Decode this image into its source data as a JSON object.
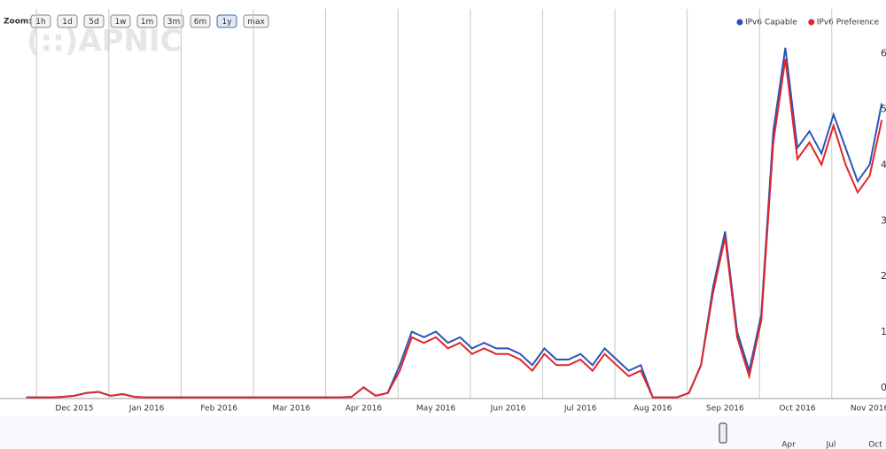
{
  "chart_data": {
    "type": "line",
    "zoom_label": "Zoom:",
    "zoom_buttons": [
      "1h",
      "1d",
      "5d",
      "1w",
      "1m",
      "3m",
      "6m",
      "1y",
      "max"
    ],
    "zoom_selected": "1y",
    "watermark": "(::)APNIC",
    "legend_position": "top-right",
    "categories": [
      null,
      null,
      null,
      null,
      "Dec 2015",
      null,
      null,
      null,
      null,
      null,
      "Jan 2016",
      null,
      null,
      null,
      null,
      null,
      "Feb 2016",
      null,
      null,
      null,
      null,
      null,
      "Mar 2016",
      null,
      null,
      null,
      null,
      null,
      "Apr 2016",
      null,
      null,
      null,
      null,
      null,
      "May 2016",
      null,
      null,
      null,
      null,
      null,
      "Jun 2016",
      null,
      null,
      null,
      null,
      null,
      "Jul 2016",
      null,
      null,
      null,
      null,
      null,
      "Aug 2016",
      null,
      null,
      null,
      null,
      null,
      "Sep 2016",
      null,
      null,
      null,
      null,
      null,
      "Oct 2016",
      null,
      null,
      null,
      null,
      null,
      "Nov 2016",
      null
    ],
    "series": [
      {
        "name": "IPv6 Capable",
        "color": "#2b55b5",
        "values": [
          0.02,
          0.02,
          0.02,
          0.03,
          0.05,
          0.1,
          0.12,
          0.05,
          0.08,
          0.03,
          0.02,
          0.02,
          0.02,
          0.02,
          0.02,
          0.02,
          0.02,
          0.02,
          0.02,
          0.02,
          0.02,
          0.02,
          0.02,
          0.02,
          0.02,
          0.02,
          0.02,
          0.03,
          0.2,
          0.05,
          0.1,
          0.6,
          1.2,
          1.1,
          1.2,
          1.0,
          1.1,
          0.9,
          1.0,
          0.9,
          0.9,
          0.8,
          0.6,
          0.9,
          0.7,
          0.7,
          0.8,
          0.6,
          0.9,
          0.7,
          0.5,
          0.6,
          0.02,
          0.02,
          0.02,
          0.1,
          0.6,
          2.0,
          3.0,
          1.2,
          0.5,
          1.5,
          4.8,
          6.3,
          4.5,
          4.8,
          4.4,
          5.1,
          4.5,
          3.9,
          4.2,
          5.3
        ]
      },
      {
        "name": "IPv6 Preference",
        "color": "#e0262b",
        "values": [
          0.02,
          0.02,
          0.02,
          0.03,
          0.05,
          0.1,
          0.12,
          0.05,
          0.08,
          0.03,
          0.02,
          0.02,
          0.02,
          0.02,
          0.02,
          0.02,
          0.02,
          0.02,
          0.02,
          0.02,
          0.02,
          0.02,
          0.02,
          0.02,
          0.02,
          0.02,
          0.02,
          0.03,
          0.2,
          0.05,
          0.1,
          0.5,
          1.1,
          1.0,
          1.1,
          0.9,
          1.0,
          0.8,
          0.9,
          0.8,
          0.8,
          0.7,
          0.5,
          0.8,
          0.6,
          0.6,
          0.7,
          0.5,
          0.8,
          0.6,
          0.4,
          0.5,
          0.02,
          0.02,
          0.02,
          0.1,
          0.6,
          1.9,
          2.9,
          1.1,
          0.4,
          1.4,
          4.6,
          6.1,
          4.3,
          4.6,
          4.2,
          4.9,
          4.2,
          3.7,
          4.0,
          5.0
        ]
      }
    ],
    "ylim": [
      0,
      6.6
    ],
    "yticks": [
      0,
      1,
      2,
      3,
      4,
      5,
      6
    ],
    "grid": true,
    "navigator_labels": [
      "Apr",
      "Jul",
      "Oct"
    ]
  }
}
